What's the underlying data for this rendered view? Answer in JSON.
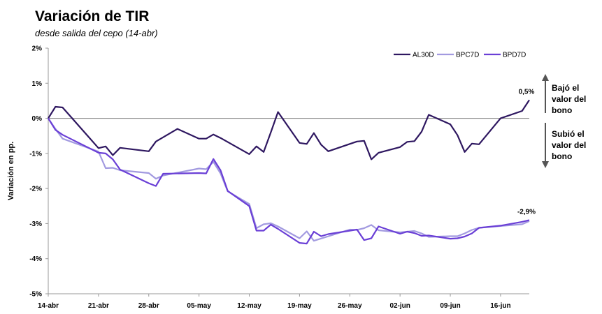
{
  "chart_data": {
    "type": "line",
    "title": "Variación de TIR",
    "subtitle": "desde salida del cepo (14-abr)",
    "ylabel": "Variación en pp.",
    "xlabel": "",
    "ylim": [
      -5,
      2
    ],
    "y_ticks": [
      "2%",
      "1%",
      "0%",
      "-1%",
      "-2%",
      "-3%",
      "-4%",
      "-5%"
    ],
    "x_range": [
      "2025-04-14",
      "2025-06-20"
    ],
    "x_ticks": [
      {
        "date": "2025-04-14",
        "label": "14-abr"
      },
      {
        "date": "2025-04-21",
        "label": "21-abr"
      },
      {
        "date": "2025-04-28",
        "label": "28-abr"
      },
      {
        "date": "2025-05-05",
        "label": "05-may"
      },
      {
        "date": "2025-05-12",
        "label": "12-may"
      },
      {
        "date": "2025-05-19",
        "label": "19-may"
      },
      {
        "date": "2025-05-26",
        "label": "26-may"
      },
      {
        "date": "2025-06-02",
        "label": "02-jun"
      },
      {
        "date": "2025-06-09",
        "label": "09-jun"
      },
      {
        "date": "2025-06-16",
        "label": "16-jun"
      }
    ],
    "legend_position": "top-right",
    "grid": false,
    "series": [
      {
        "name": "AL30D",
        "color": "#2e1760",
        "points": [
          [
            "2025-04-14",
            0.0
          ],
          [
            "2025-04-15",
            0.33
          ],
          [
            "2025-04-16",
            0.31
          ],
          [
            "2025-04-21",
            -0.85
          ],
          [
            "2025-04-22",
            -0.8
          ],
          [
            "2025-04-23",
            -1.05
          ],
          [
            "2025-04-24",
            -0.84
          ],
          [
            "2025-04-28",
            -0.94
          ],
          [
            "2025-04-29",
            -0.66
          ],
          [
            "2025-05-02",
            -0.3
          ],
          [
            "2025-05-05",
            -0.58
          ],
          [
            "2025-05-06",
            -0.58
          ],
          [
            "2025-05-07",
            -0.46
          ],
          [
            "2025-05-08",
            -0.56
          ],
          [
            "2025-05-12",
            -1.02
          ],
          [
            "2025-05-13",
            -0.8
          ],
          [
            "2025-05-14",
            -0.96
          ],
          [
            "2025-05-15",
            -0.4
          ],
          [
            "2025-05-16",
            0.18
          ],
          [
            "2025-05-19",
            -0.7
          ],
          [
            "2025-05-20",
            -0.73
          ],
          [
            "2025-05-21",
            -0.42
          ],
          [
            "2025-05-22",
            -0.75
          ],
          [
            "2025-05-23",
            -0.94
          ],
          [
            "2025-05-27",
            -0.66
          ],
          [
            "2025-05-28",
            -0.64
          ],
          [
            "2025-05-29",
            -1.17
          ],
          [
            "2025-05-30",
            -0.98
          ],
          [
            "2025-06-02",
            -0.82
          ],
          [
            "2025-06-03",
            -0.67
          ],
          [
            "2025-06-04",
            -0.65
          ],
          [
            "2025-06-05",
            -0.38
          ],
          [
            "2025-06-06",
            0.1
          ],
          [
            "2025-06-09",
            -0.17
          ],
          [
            "2025-06-10",
            -0.48
          ],
          [
            "2025-06-11",
            -0.96
          ],
          [
            "2025-06-12",
            -0.72
          ],
          [
            "2025-06-13",
            -0.74
          ],
          [
            "2025-06-16",
            0.0
          ],
          [
            "2025-06-19",
            0.21
          ],
          [
            "2025-06-20",
            0.52
          ]
        ],
        "end_label": "0,5%"
      },
      {
        "name": "BPC7D",
        "color": "#a29ae0",
        "points": [
          [
            "2025-04-14",
            0.0
          ],
          [
            "2025-04-15",
            -0.3
          ],
          [
            "2025-04-16",
            -0.58
          ],
          [
            "2025-04-21",
            -0.95
          ],
          [
            "2025-04-22",
            -1.42
          ],
          [
            "2025-04-23",
            -1.41
          ],
          [
            "2025-04-24",
            -1.48
          ],
          [
            "2025-04-28",
            -1.56
          ],
          [
            "2025-04-29",
            -1.72
          ],
          [
            "2025-04-30",
            -1.63
          ],
          [
            "2025-05-05",
            -1.43
          ],
          [
            "2025-05-06",
            -1.45
          ],
          [
            "2025-05-07",
            -1.24
          ],
          [
            "2025-05-08",
            -1.57
          ],
          [
            "2025-05-09",
            -2.08
          ],
          [
            "2025-05-12",
            -2.44
          ],
          [
            "2025-05-13",
            -3.13
          ],
          [
            "2025-05-14",
            -3.02
          ],
          [
            "2025-05-15",
            -2.99
          ],
          [
            "2025-05-16",
            -3.08
          ],
          [
            "2025-05-19",
            -3.42
          ],
          [
            "2025-05-20",
            -3.22
          ],
          [
            "2025-05-21",
            -3.49
          ],
          [
            "2025-05-26",
            -3.17
          ],
          [
            "2025-05-27",
            -3.18
          ],
          [
            "2025-05-28",
            -3.13
          ],
          [
            "2025-05-29",
            -3.04
          ],
          [
            "2025-05-30",
            -3.19
          ],
          [
            "2025-06-02",
            -3.25
          ],
          [
            "2025-06-03",
            -3.23
          ],
          [
            "2025-06-04",
            -3.21
          ],
          [
            "2025-06-05",
            -3.28
          ],
          [
            "2025-06-06",
            -3.38
          ],
          [
            "2025-06-09",
            -3.36
          ],
          [
            "2025-06-10",
            -3.36
          ],
          [
            "2025-06-11",
            -3.28
          ],
          [
            "2025-06-12",
            -3.18
          ],
          [
            "2025-06-13",
            -3.12
          ],
          [
            "2025-06-16",
            -3.07
          ],
          [
            "2025-06-19",
            -3.02
          ],
          [
            "2025-06-20",
            -2.93
          ]
        ]
      },
      {
        "name": "BPD7D",
        "color": "#6a3fd6",
        "points": [
          [
            "2025-04-14",
            0.0
          ],
          [
            "2025-04-15",
            -0.33
          ],
          [
            "2025-04-16",
            -0.47
          ],
          [
            "2025-04-21",
            -0.98
          ],
          [
            "2025-04-22",
            -1.0
          ],
          [
            "2025-04-23",
            -1.17
          ],
          [
            "2025-04-24",
            -1.46
          ],
          [
            "2025-04-28",
            -1.85
          ],
          [
            "2025-04-29",
            -1.93
          ],
          [
            "2025-04-30",
            -1.58
          ],
          [
            "2025-05-05",
            -1.56
          ],
          [
            "2025-05-06",
            -1.57
          ],
          [
            "2025-05-07",
            -1.16
          ],
          [
            "2025-05-08",
            -1.48
          ],
          [
            "2025-05-09",
            -2.07
          ],
          [
            "2025-05-12",
            -2.5
          ],
          [
            "2025-05-13",
            -3.2
          ],
          [
            "2025-05-14",
            -3.2
          ],
          [
            "2025-05-15",
            -3.03
          ],
          [
            "2025-05-16",
            -3.15
          ],
          [
            "2025-05-19",
            -3.55
          ],
          [
            "2025-05-20",
            -3.57
          ],
          [
            "2025-05-21",
            -3.23
          ],
          [
            "2025-05-22",
            -3.36
          ],
          [
            "2025-05-23",
            -3.3
          ],
          [
            "2025-05-27",
            -3.17
          ],
          [
            "2025-05-28",
            -3.47
          ],
          [
            "2025-05-29",
            -3.42
          ],
          [
            "2025-05-30",
            -3.08
          ],
          [
            "2025-06-02",
            -3.29
          ],
          [
            "2025-06-03",
            -3.23
          ],
          [
            "2025-06-04",
            -3.27
          ],
          [
            "2025-06-05",
            -3.35
          ],
          [
            "2025-06-06",
            -3.34
          ],
          [
            "2025-06-09",
            -3.43
          ],
          [
            "2025-06-10",
            -3.42
          ],
          [
            "2025-06-11",
            -3.37
          ],
          [
            "2025-06-12",
            -3.28
          ],
          [
            "2025-06-13",
            -3.12
          ],
          [
            "2025-06-16",
            -3.06
          ],
          [
            "2025-06-19",
            -2.95
          ],
          [
            "2025-06-20",
            -2.9
          ]
        ],
        "end_label": "-2,9%"
      }
    ],
    "annotations": {
      "up_text": [
        "Bajó el",
        "valor del",
        "bono"
      ],
      "down_text": [
        "Subió el",
        "valor del",
        "bono"
      ],
      "arrow_color": "#555555"
    }
  }
}
